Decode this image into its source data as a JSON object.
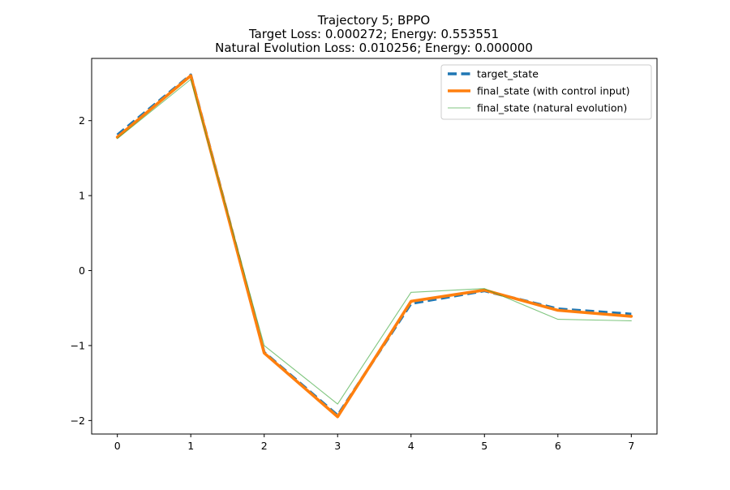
{
  "chart_data": {
    "type": "line",
    "title_lines": [
      "Trajectory 5; BPPO",
      "Target Loss: 0.000272; Energy: 0.553551",
      "Natural Evolution Loss: 0.010256; Energy: 0.000000"
    ],
    "xlabel": "",
    "ylabel": "",
    "x": [
      0,
      1,
      2,
      3,
      4,
      5,
      6,
      7
    ],
    "xlim": [
      -0.35,
      7.35
    ],
    "ylim": [
      -2.18,
      2.83
    ],
    "xticks": [
      0,
      1,
      2,
      3,
      4,
      5,
      6,
      7
    ],
    "yticks": [
      -2,
      -1,
      0,
      1,
      2
    ],
    "ytick_labels": [
      "−2",
      "−1",
      "0",
      "1",
      "2"
    ],
    "grid": false,
    "legend_position": "upper right",
    "series": [
      {
        "name": "target_state",
        "color": "#1f77b4",
        "style": "dashed",
        "values": [
          1.81,
          2.61,
          -1.09,
          -1.93,
          -0.44,
          -0.27,
          -0.51,
          -0.58
        ]
      },
      {
        "name": "final_state (with control input)",
        "color": "#ff7f0e",
        "style": "solid-thick",
        "values": [
          1.78,
          2.6,
          -1.1,
          -1.95,
          -0.41,
          -0.26,
          -0.53,
          -0.61
        ]
      },
      {
        "name": "final_state (natural evolution)",
        "color": "#2ca02c",
        "style": "solid-thin",
        "values": [
          1.76,
          2.55,
          -1.0,
          -1.78,
          -0.29,
          -0.24,
          -0.65,
          -0.67
        ]
      }
    ]
  }
}
